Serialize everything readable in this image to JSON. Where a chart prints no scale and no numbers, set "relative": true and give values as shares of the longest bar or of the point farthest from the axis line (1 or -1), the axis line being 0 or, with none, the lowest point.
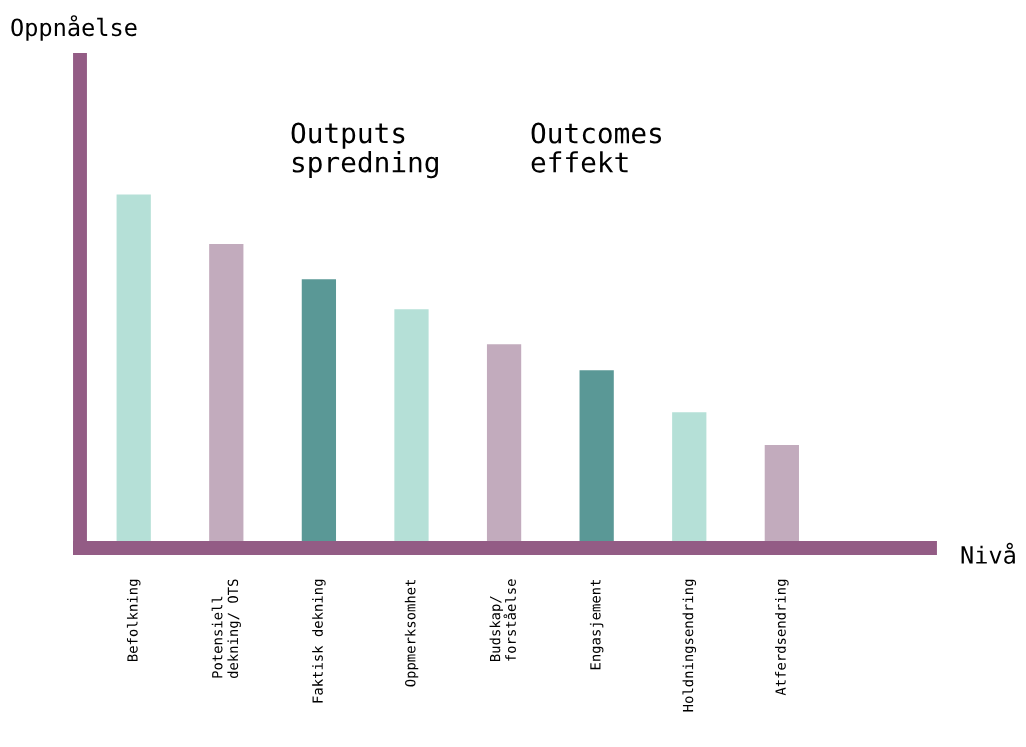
{
  "chart_data": {
    "type": "bar",
    "relative": true,
    "categories": [
      "Befolkning",
      "Potensiell\ndekning/ OTS",
      "Faktisk dekning",
      "Oppmerksomhet",
      "Budskap/\nforståelse",
      "Engasjement",
      "Holdningsendring",
      "Atferdsendring"
    ],
    "values": [
      1,
      0.86,
      0.76,
      0.675,
      0.576,
      0.503,
      0.384,
      0.291
    ],
    "colors": [
      "#b5e0d7",
      "#c2abbd",
      "#5a9896",
      "#b5e0d7",
      "#c2abbd",
      "#5a9896",
      "#b5e0d7",
      "#c2abbd"
    ],
    "annotations": [
      "Oppnåelse",
      "Outputs\nspredning",
      "Outcomes\neffekt",
      "Nivå"
    ],
    "grid": false,
    "legend": false
  }
}
